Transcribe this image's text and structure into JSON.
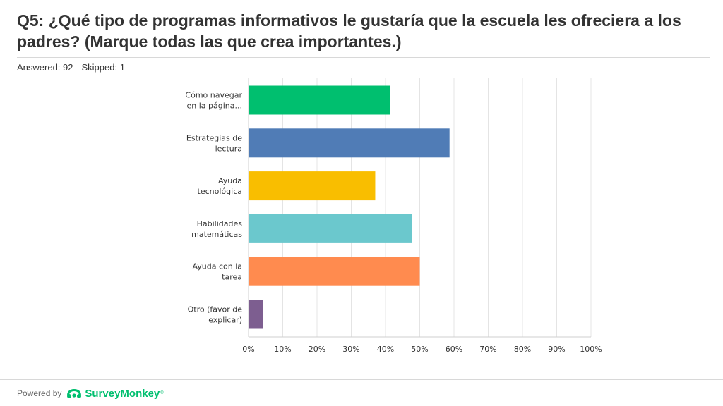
{
  "question": {
    "title": "Q5: ¿Qué tipo de programas informativos le gustaría que la escuela les ofreciera a los padres? (Marque todas las que crea importantes.)",
    "answered": "Answered: 92",
    "skipped": "Skipped: 1"
  },
  "footer": {
    "powered_by": "Powered by",
    "brand": "SurveyMonkey",
    "trademark": "®",
    "brand_color": "#00bf6f",
    "logo_icon": "surveymonkey-logo-icon"
  },
  "chart_data": {
    "type": "bar",
    "orientation": "horizontal",
    "title": "",
    "xlabel": "",
    "ylabel": "",
    "xlim": [
      0,
      100
    ],
    "grid": true,
    "ticks": [
      "0%",
      "10%",
      "20%",
      "30%",
      "40%",
      "50%",
      "60%",
      "70%",
      "80%",
      "90%",
      "100%"
    ],
    "categories": [
      [
        "Cómo navegar",
        "en la página..."
      ],
      [
        "Estrategias de",
        "lectura"
      ],
      [
        "Ayuda",
        "tecnológica"
      ],
      [
        "Habilidades",
        "matemáticas"
      ],
      [
        "Ayuda con la",
        "tarea"
      ],
      [
        "Otro (favor de",
        "explicar)"
      ]
    ],
    "values": [
      41.3,
      58.7,
      37.0,
      47.8,
      50.0,
      4.3
    ],
    "colors": [
      "#00bf6f",
      "#507cb6",
      "#f9be00",
      "#6bc8cd",
      "#ff8b4f",
      "#7d5e90"
    ]
  }
}
